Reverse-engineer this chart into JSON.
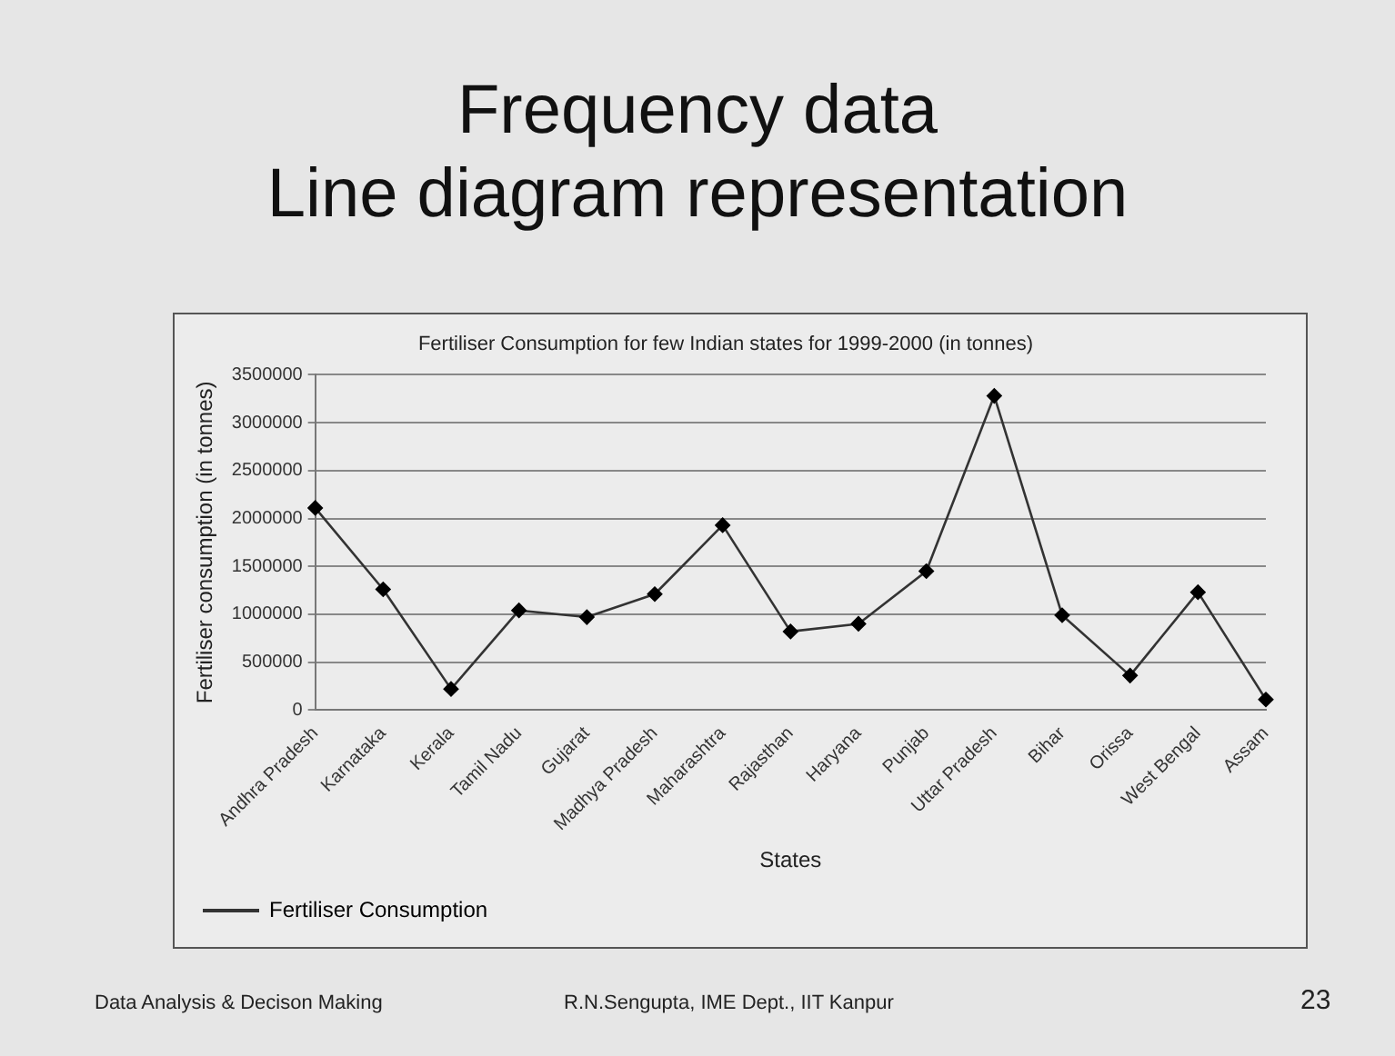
{
  "chart_data": {
    "type": "line",
    "title": "Frequency data\nLine diagram representation",
    "subtitle": "Fertiliser Consumption for few Indian states for 1999-2000 (in tonnes)",
    "xlabel": "States",
    "ylabel": "Fertiliser consumption (in tonnes)",
    "categories": [
      "Andhra Pradesh",
      "Karnataka",
      "Kerala",
      "Tamil Nadu",
      "Gujarat",
      "Madhya Pradesh",
      "Maharashtra",
      "Rajasthan",
      "Haryana",
      "Punjab",
      "Uttar Pradesh",
      "Bihar",
      "Orissa",
      "West Bengal",
      "Assam"
    ],
    "series": [
      {
        "name": "Fertiliser Consumption",
        "color": "#333333",
        "values": [
          2110000,
          1260000,
          220000,
          1040000,
          970000,
          1210000,
          1930000,
          820000,
          900000,
          1450000,
          3280000,
          990000,
          360000,
          1230000,
          110000
        ]
      }
    ],
    "ylim": [
      0,
      3500000
    ],
    "yticks": [
      0,
      500000,
      1000000,
      1500000,
      2000000,
      2500000,
      3000000,
      3500000
    ],
    "grid": "y",
    "legend": "bottom left",
    "marker": "diamond",
    "line_style": "solid",
    "annotations": [
      "Data Analysis & Decison Making",
      "R.N.Sengupta, IME Dept., IIT Kanpur",
      "23"
    ]
  }
}
